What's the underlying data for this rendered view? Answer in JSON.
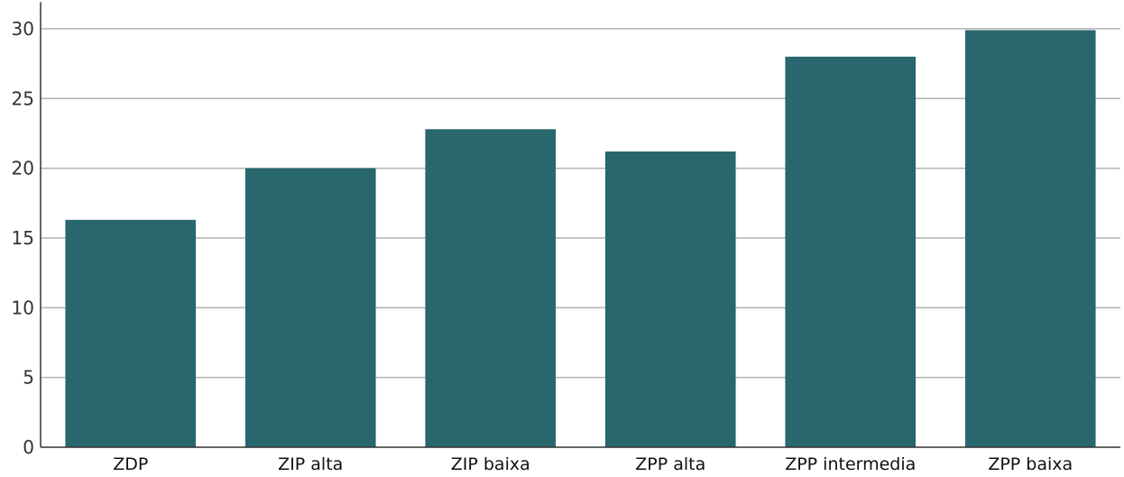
{
  "chart_data": {
    "type": "bar",
    "title": "",
    "xlabel": "",
    "ylabel": "",
    "categories": [
      "ZDP",
      "ZIP alta",
      "ZIP baixa",
      "ZPP alta",
      "ZPP intermedia",
      "ZPP baixa"
    ],
    "values": [
      16.3,
      20.0,
      22.8,
      21.2,
      28.0,
      29.9
    ],
    "ylim": [
      0,
      31
    ],
    "yticks": [
      0,
      5,
      10,
      15,
      20,
      25,
      30
    ],
    "grid": true,
    "legend": "none",
    "bar_color": "#27676d"
  }
}
